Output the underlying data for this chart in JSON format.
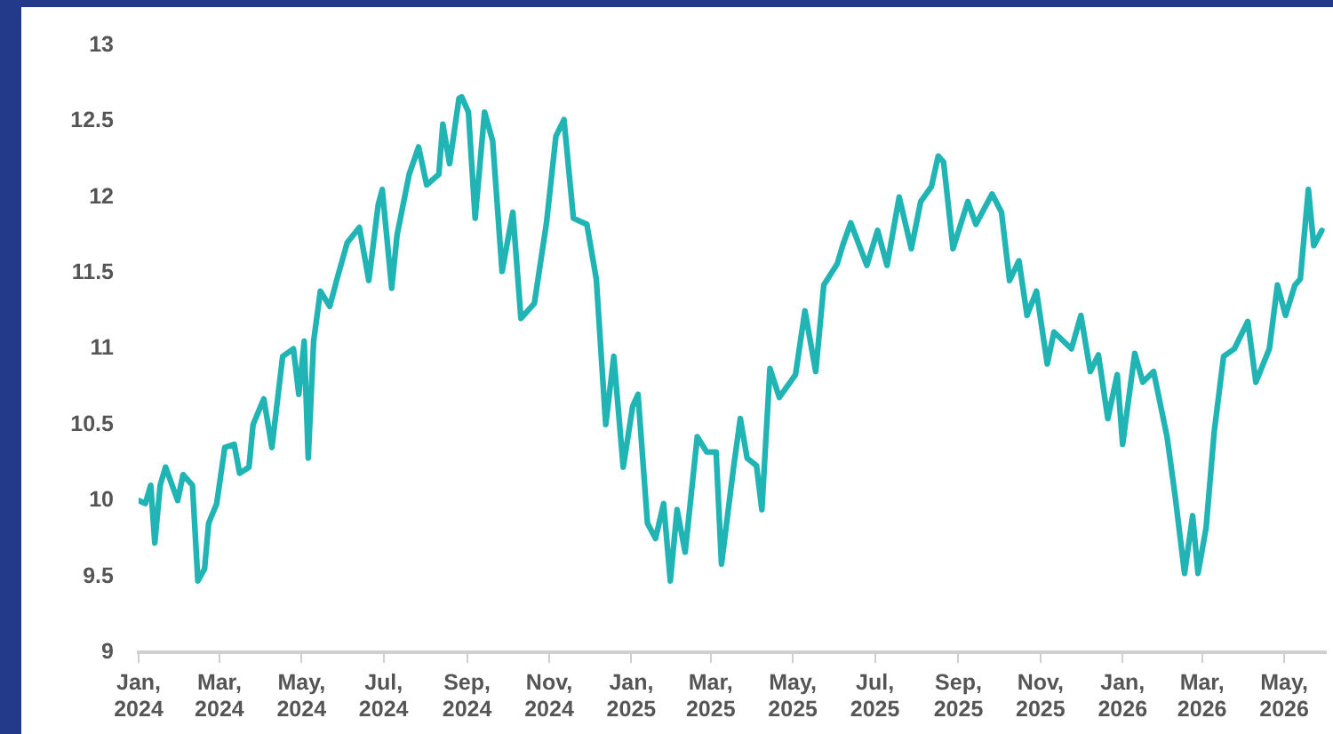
{
  "chart_data": {
    "type": "line",
    "x": [
      "2024-01-01",
      "2024-01-06",
      "2024-01-10",
      "2024-01-13",
      "2024-01-17",
      "2024-01-21",
      "2024-01-30",
      "2024-02-03",
      "2024-02-10",
      "2024-02-14",
      "2024-02-19",
      "2024-02-22",
      "2024-02-28",
      "2024-03-05",
      "2024-03-12",
      "2024-03-16",
      "2024-03-23",
      "2024-03-26",
      "2024-04-03",
      "2024-04-09",
      "2024-04-17",
      "2024-04-25",
      "2024-04-29",
      "2024-05-03",
      "2024-05-06",
      "2024-05-10",
      "2024-05-15",
      "2024-05-22",
      "2024-05-28",
      "2024-06-04",
      "2024-06-13",
      "2024-06-20",
      "2024-06-27",
      "2024-06-30",
      "2024-07-07",
      "2024-07-11",
      "2024-07-20",
      "2024-07-27",
      "2024-08-02",
      "2024-08-11",
      "2024-08-14",
      "2024-08-19",
      "2024-08-26",
      "2024-08-28",
      "2024-09-02",
      "2024-09-07",
      "2024-09-14",
      "2024-09-20",
      "2024-09-27",
      "2024-10-05",
      "2024-10-11",
      "2024-10-21",
      "2024-10-30",
      "2024-11-06",
      "2024-11-12",
      "2024-11-19",
      "2024-11-29",
      "2024-12-06",
      "2024-12-13",
      "2024-12-19",
      "2024-12-26",
      "2025-01-02",
      "2025-01-06",
      "2025-01-13",
      "2025-01-19",
      "2025-01-25",
      "2025-01-30",
      "2025-02-04",
      "2025-02-10",
      "2025-02-19",
      "2025-02-26",
      "2025-03-05",
      "2025-03-09",
      "2025-03-18",
      "2025-03-23",
      "2025-03-28",
      "2025-04-04",
      "2025-04-08",
      "2025-04-14",
      "2025-04-21",
      "2025-05-03",
      "2025-05-10",
      "2025-05-18",
      "2025-05-24",
      "2025-06-03",
      "2025-06-07",
      "2025-06-13",
      "2025-06-25",
      "2025-07-03",
      "2025-07-10",
      "2025-07-19",
      "2025-07-28",
      "2025-08-04",
      "2025-08-12",
      "2025-08-17",
      "2025-08-21",
      "2025-08-28",
      "2025-09-08",
      "2025-09-14",
      "2025-09-26",
      "2025-10-03",
      "2025-10-09",
      "2025-10-16",
      "2025-10-22",
      "2025-10-29",
      "2025-11-06",
      "2025-11-11",
      "2025-11-24",
      "2025-12-01",
      "2025-12-08",
      "2025-12-14",
      "2025-12-21",
      "2025-12-28",
      "2026-01-01",
      "2026-01-10",
      "2026-01-16",
      "2026-01-24",
      "2026-02-03",
      "2026-02-09",
      "2026-02-16",
      "2026-02-22",
      "2026-02-26",
      "2026-03-04",
      "2026-03-10",
      "2026-03-17",
      "2026-03-25",
      "2026-04-04",
      "2026-04-10",
      "2026-04-20",
      "2026-04-26",
      "2026-05-02",
      "2026-05-09",
      "2026-05-13",
      "2026-05-19",
      "2026-05-23",
      "2026-05-29"
    ],
    "series": [
      {
        "color": "#20b4b4",
        "values": [
          10.0,
          9.98,
          10.1,
          9.72,
          10.1,
          10.22,
          10.0,
          10.17,
          10.1,
          9.47,
          9.55,
          9.85,
          9.98,
          10.35,
          10.37,
          10.18,
          10.22,
          10.5,
          10.67,
          10.35,
          10.95,
          11.0,
          10.7,
          11.05,
          10.28,
          11.05,
          11.38,
          11.28,
          11.48,
          11.7,
          11.8,
          11.45,
          11.95,
          12.05,
          11.4,
          11.75,
          12.15,
          12.33,
          12.08,
          12.15,
          12.48,
          12.22,
          12.65,
          12.66,
          12.56,
          11.86,
          12.56,
          12.37,
          11.51,
          11.9,
          11.2,
          11.3,
          11.83,
          12.4,
          12.51,
          11.86,
          11.82,
          11.46,
          10.5,
          10.95,
          10.22,
          10.62,
          10.7,
          9.85,
          9.75,
          9.98,
          9.47,
          9.94,
          9.66,
          10.42,
          10.32,
          10.32,
          9.58,
          10.22,
          10.54,
          10.28,
          10.23,
          9.94,
          10.87,
          10.68,
          10.83,
          11.25,
          10.85,
          11.42,
          11.56,
          11.68,
          11.83,
          11.55,
          11.78,
          11.55,
          12.0,
          11.66,
          11.97,
          12.07,
          12.27,
          12.23,
          11.66,
          11.97,
          11.82,
          12.02,
          11.9,
          11.45,
          11.58,
          11.22,
          11.38,
          10.9,
          11.11,
          11.0,
          11.22,
          10.85,
          10.96,
          10.54,
          10.83,
          10.37,
          10.97,
          10.78,
          10.85,
          10.42,
          10.03,
          9.52,
          9.9,
          9.52,
          9.82,
          10.45,
          10.95,
          11.0,
          11.18,
          10.78,
          11.0,
          11.42,
          11.22,
          11.42,
          11.46,
          12.05,
          11.68,
          11.78
        ]
      }
    ],
    "xlim": [
      "2024-01-01",
      "2026-06-01"
    ],
    "xticks": [
      {
        "value": "2024-01-01",
        "label": "Jan, 2024"
      },
      {
        "value": "2024-03-01",
        "label": "Mar, 2024"
      },
      {
        "value": "2024-05-01",
        "label": "May, 2024"
      },
      {
        "value": "2024-07-01",
        "label": "Jul, 2024"
      },
      {
        "value": "2024-09-01",
        "label": "Sep, 2024"
      },
      {
        "value": "2024-11-01",
        "label": "Nov, 2024"
      },
      {
        "value": "2025-01-01",
        "label": "Jan, 2025"
      },
      {
        "value": "2025-03-01",
        "label": "Mar, 2025"
      },
      {
        "value": "2025-05-01",
        "label": "May, 2025"
      },
      {
        "value": "2025-07-01",
        "label": "Jul, 2025"
      },
      {
        "value": "2025-09-01",
        "label": "Sep, 2025"
      },
      {
        "value": "2025-11-01",
        "label": "Nov, 2025"
      },
      {
        "value": "2026-01-01",
        "label": "Jan, 2026"
      },
      {
        "value": "2026-03-01",
        "label": "Mar, 2026"
      },
      {
        "value": "2026-05-01",
        "label": "May, 2026"
      }
    ],
    "ylim": [
      9,
      13
    ],
    "yticks": [
      9,
      9.5,
      10,
      10.5,
      11,
      11.5,
      12,
      12.5,
      13
    ],
    "grid": false,
    "legend": false,
    "marker": "none",
    "line_style": "solid"
  }
}
